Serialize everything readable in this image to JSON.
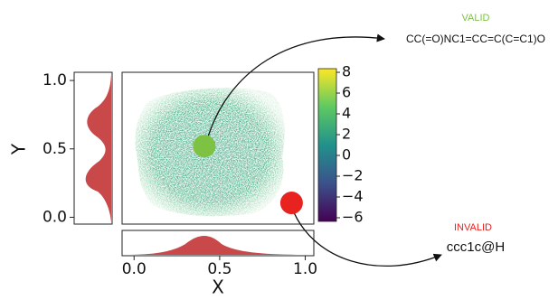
{
  "chart_data": {
    "type": "scatter",
    "x_label": "X",
    "y_label": "Y",
    "xlim": [
      -0.07,
      1.05
    ],
    "ylim": [
      -0.05,
      1.06
    ],
    "xticks": [
      {
        "value": 0,
        "label": "0.0"
      },
      {
        "value": 0.5,
        "label": "0.5"
      },
      {
        "value": 1,
        "label": "1.0"
      }
    ],
    "yticks": [
      {
        "value": 0,
        "label": "0.0"
      },
      {
        "value": 0.5,
        "label": "0.5"
      },
      {
        "value": 1,
        "label": "1.0"
      }
    ],
    "colorbar": {
      "lim": [
        -6.35,
        8.35
      ],
      "ticks": [
        8,
        6,
        4,
        2,
        0,
        {
          "value": -2,
          "label": "−2"
        },
        {
          "value": -4,
          "label": "−4"
        },
        {
          "value": -6,
          "label": "−6"
        }
      ]
    },
    "series": [
      {
        "name": "VALID",
        "color": "#7dc243",
        "x": [
          0.41
        ],
        "y": [
          0.52
        ],
        "smiles": "CC(=O)NC1=CC=C(C=C1)O"
      },
      {
        "name": "INVALID",
        "color": "#e8231f",
        "x": [
          0.92
        ],
        "y": [
          0.105
        ],
        "smiles": "ccc1c@H"
      }
    ]
  }
}
